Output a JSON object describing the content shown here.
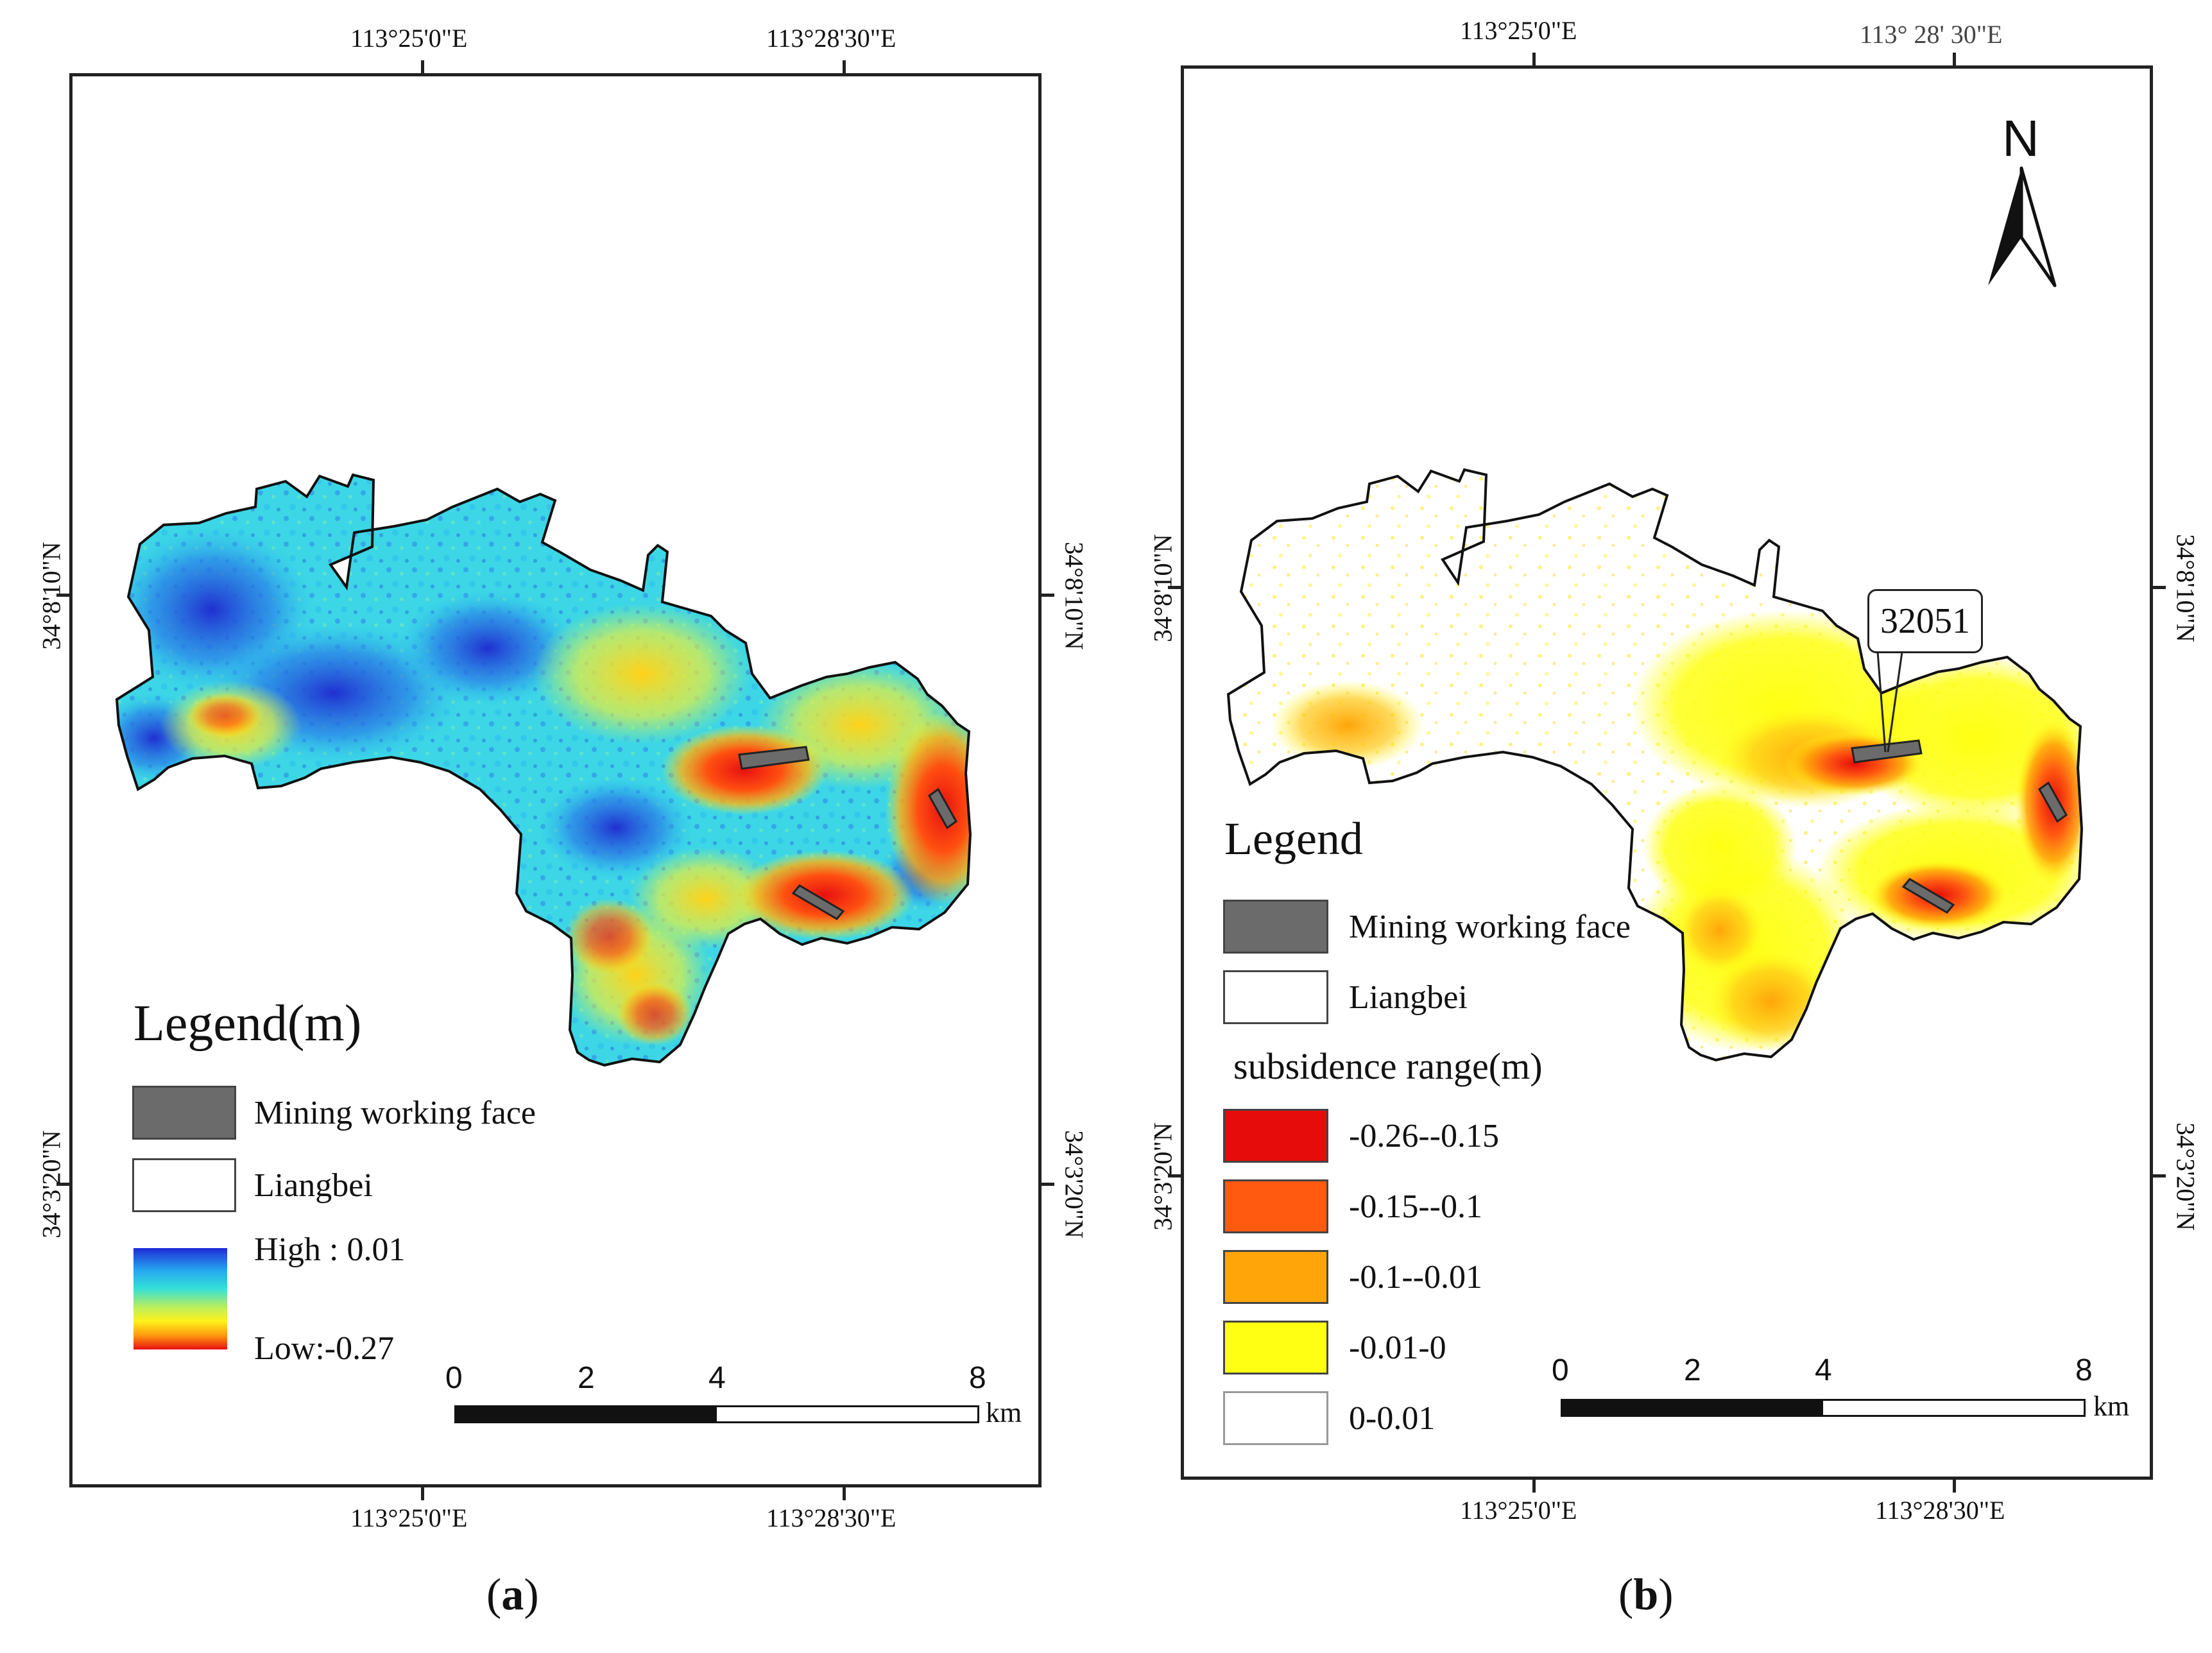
{
  "panel_a": {
    "coords": {
      "top_left": "113°25'0\"E",
      "top_right": "113°28'30\"E",
      "bottom_left": "113°25'0\"E",
      "bottom_right": "113°28'30\"E",
      "left_upper": "34°8'10\"N",
      "left_lower": "34°3'20\"N",
      "right_upper": "34°8'10\"N",
      "right_lower": "34°3'20\"N"
    },
    "legend": {
      "title": "Legend(m)",
      "mining_label": "Mining working face",
      "liangbei_label": "Liangbei",
      "high_label": "High : 0.01",
      "low_label": "Low:-0.27",
      "gradient_colors": [
        "#1e2ad6",
        "#26a8f0",
        "#34e0d8",
        "#b8ef5e",
        "#fff21a",
        "#ff9a10",
        "#e81010"
      ]
    },
    "scale": {
      "n0": "0",
      "n2": "2",
      "n4": "4",
      "n8": "8",
      "unit": "km"
    },
    "caption_letter": "a"
  },
  "panel_b": {
    "coords": {
      "top_left": "113°25'0\"E",
      "top_right": "113°  28' 30\"E",
      "bottom_left": "113°25'0\"E",
      "bottom_right": "113°28'30\"E",
      "left_upper": "34°8'10\"N",
      "left_lower": "34°3'20\"N",
      "right_upper": "34°8'10\"N",
      "right_lower": "34°3'20\"N"
    },
    "north_label": "N",
    "callout_label": "32051",
    "legend": {
      "title": "Legend",
      "mining_label": "Mining working face",
      "liangbei_label": "Liangbei",
      "subsidence_title": "subsidence range(m)",
      "classes": [
        {
          "label": "-0.26--0.15",
          "color": "#e60c0c"
        },
        {
          "label": "-0.15--0.1",
          "color": "#ff5a10"
        },
        {
          "label": "-0.1--0.01",
          "color": "#ffa50a"
        },
        {
          "label": "-0.01-0",
          "color": "#ffff14"
        },
        {
          "label": "0-0.01",
          "color": "#ffffff"
        }
      ]
    },
    "scale": {
      "n0": "0",
      "n2": "2",
      "n4": "4",
      "n8": "8",
      "unit": "km"
    },
    "caption_letter": "b"
  },
  "colors": {
    "mining_face": "#6b6b6b",
    "frame": "#222222",
    "boundary": "#111111"
  }
}
